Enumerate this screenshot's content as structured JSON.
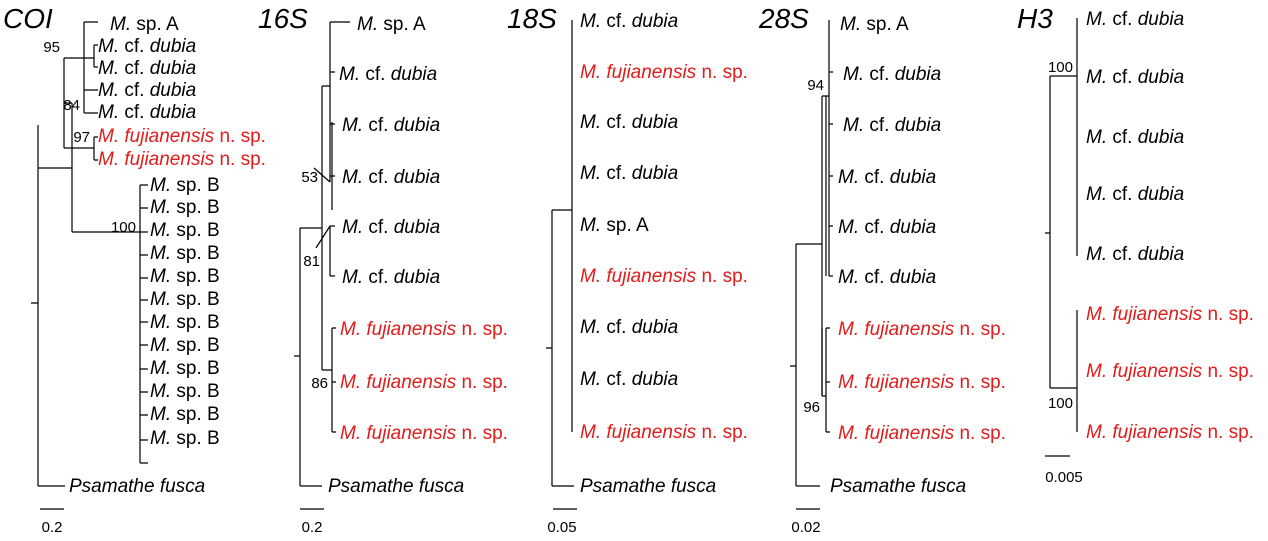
{
  "colors": {
    "black": "#000000",
    "red": "#e21b1b"
  },
  "trees": [
    {
      "gene": "COI",
      "scale": "0.2",
      "leaves": [
        {
          "genus": "M.",
          "rest": " sp. A",
          "style": "spA",
          "color": "black"
        },
        {
          "genus": "M.",
          "rest": " cf. dubia",
          "style": "cf",
          "color": "black"
        },
        {
          "genus": "M.",
          "rest": " cf. dubia",
          "style": "cf",
          "color": "black"
        },
        {
          "genus": "M.",
          "rest": " cf. dubia",
          "style": "cf",
          "color": "black"
        },
        {
          "genus": "M.",
          "rest": " cf. dubia",
          "style": "cf",
          "color": "black"
        },
        {
          "genus": "M.",
          "rest": " fujianensis n. sp.",
          "style": "fuj",
          "color": "red"
        },
        {
          "genus": "M.",
          "rest": " fujianensis n. sp.",
          "style": "fuj",
          "color": "red"
        },
        {
          "genus": "M.",
          "rest": " sp. B",
          "style": "spB",
          "color": "black"
        },
        {
          "genus": "M.",
          "rest": " sp. B",
          "style": "spB",
          "color": "black"
        },
        {
          "genus": "M.",
          "rest": " sp. B",
          "style": "spB",
          "color": "black"
        },
        {
          "genus": "M.",
          "rest": " sp. B",
          "style": "spB",
          "color": "black"
        },
        {
          "genus": "M.",
          "rest": " sp. B",
          "style": "spB",
          "color": "black"
        },
        {
          "genus": "M.",
          "rest": " sp. B",
          "style": "spB",
          "color": "black"
        },
        {
          "genus": "M.",
          "rest": " sp. B",
          "style": "spB",
          "color": "black"
        },
        {
          "genus": "M.",
          "rest": " sp. B",
          "style": "spB",
          "color": "black"
        },
        {
          "genus": "M.",
          "rest": " sp. B",
          "style": "spB",
          "color": "black"
        },
        {
          "genus": "M.",
          "rest": " sp. B",
          "style": "spB",
          "color": "black"
        },
        {
          "genus": "M.",
          "rest": " sp. B",
          "style": "spB",
          "color": "black"
        },
        {
          "genus": "M.",
          "rest": " sp. B",
          "style": "spB",
          "color": "black"
        },
        {
          "genus": "Psamathe fusca",
          "rest": "",
          "style": "out",
          "color": "black"
        }
      ],
      "supports": [
        "95",
        "84",
        "97",
        "100"
      ]
    },
    {
      "gene": "16S",
      "scale": "0.2",
      "leaves": [
        {
          "genus": "M.",
          "rest": " sp. A",
          "style": "spA",
          "color": "black"
        },
        {
          "genus": "M.",
          "rest": " cf. dubia",
          "style": "cf",
          "color": "black"
        },
        {
          "genus": "M.",
          "rest": " cf. dubia",
          "style": "cf",
          "color": "black"
        },
        {
          "genus": "M.",
          "rest": " cf. dubia",
          "style": "cf",
          "color": "black"
        },
        {
          "genus": "M.",
          "rest": " cf. dubia",
          "style": "cf",
          "color": "black"
        },
        {
          "genus": "M.",
          "rest": " cf. dubia",
          "style": "cf",
          "color": "black"
        },
        {
          "genus": "M.",
          "rest": " fujianensis n. sp.",
          "style": "fuj",
          "color": "red"
        },
        {
          "genus": "M.",
          "rest": " fujianensis n. sp.",
          "style": "fuj",
          "color": "red"
        },
        {
          "genus": "M.",
          "rest": " fujianensis n. sp.",
          "style": "fuj",
          "color": "red"
        },
        {
          "genus": "Psamathe fusca",
          "rest": "",
          "style": "out",
          "color": "black"
        }
      ],
      "supports": [
        "53",
        "81",
        "86"
      ]
    },
    {
      "gene": "18S",
      "scale": "0.05",
      "leaves": [
        {
          "genus": "M.",
          "rest": " cf. dubia",
          "style": "cf",
          "color": "black"
        },
        {
          "genus": "M.",
          "rest": " fujianensis n. sp.",
          "style": "fuj",
          "color": "red"
        },
        {
          "genus": "M.",
          "rest": " cf. dubia",
          "style": "cf",
          "color": "black"
        },
        {
          "genus": "M.",
          "rest": " cf. dubia",
          "style": "cf",
          "color": "black"
        },
        {
          "genus": "M.",
          "rest": " sp. A",
          "style": "spA",
          "color": "black"
        },
        {
          "genus": "M.",
          "rest": " fujianensis n. sp.",
          "style": "fuj",
          "color": "red"
        },
        {
          "genus": "M.",
          "rest": " cf. dubia",
          "style": "cf",
          "color": "black"
        },
        {
          "genus": "M.",
          "rest": " cf. dubia",
          "style": "cf",
          "color": "black"
        },
        {
          "genus": "M.",
          "rest": " fujianensis n. sp.",
          "style": "fuj",
          "color": "red"
        },
        {
          "genus": "Psamathe fusca",
          "rest": "",
          "style": "out",
          "color": "black"
        }
      ],
      "supports": []
    },
    {
      "gene": "28S",
      "scale": "0.02",
      "leaves": [
        {
          "genus": "M.",
          "rest": " sp. A",
          "style": "spA",
          "color": "black"
        },
        {
          "genus": "M.",
          "rest": " cf. dubia",
          "style": "cf",
          "color": "black"
        },
        {
          "genus": "M.",
          "rest": " cf. dubia",
          "style": "cf",
          "color": "black"
        },
        {
          "genus": "M.",
          "rest": " cf. dubia",
          "style": "cf",
          "color": "black"
        },
        {
          "genus": "M.",
          "rest": " cf. dubia",
          "style": "cf",
          "color": "black"
        },
        {
          "genus": "M.",
          "rest": " cf. dubia",
          "style": "cf",
          "color": "black"
        },
        {
          "genus": "M.",
          "rest": " fujianensis n. sp.",
          "style": "fuj",
          "color": "red"
        },
        {
          "genus": "M.",
          "rest": " fujianensis n. sp.",
          "style": "fuj",
          "color": "red"
        },
        {
          "genus": "M.",
          "rest": " fujianensis n. sp.",
          "style": "fuj",
          "color": "red"
        },
        {
          "genus": "Psamathe fusca",
          "rest": "",
          "style": "out",
          "color": "black"
        }
      ],
      "supports": [
        "94",
        "96"
      ]
    },
    {
      "gene": "H3",
      "scale": "0.005",
      "leaves": [
        {
          "genus": "M.",
          "rest": " cf. dubia",
          "style": "cf",
          "color": "black"
        },
        {
          "genus": "M.",
          "rest": " cf. dubia",
          "style": "cf",
          "color": "black"
        },
        {
          "genus": "M.",
          "rest": " cf. dubia",
          "style": "cf",
          "color": "black"
        },
        {
          "genus": "M.",
          "rest": " cf. dubia",
          "style": "cf",
          "color": "black"
        },
        {
          "genus": "M.",
          "rest": " cf. dubia",
          "style": "cf",
          "color": "black"
        },
        {
          "genus": "M.",
          "rest": " fujianensis n. sp.",
          "style": "fuj",
          "color": "red"
        },
        {
          "genus": "M.",
          "rest": " fujianensis n. sp.",
          "style": "fuj",
          "color": "red"
        },
        {
          "genus": "M.",
          "rest": " fujianensis n. sp.",
          "style": "fuj",
          "color": "red"
        }
      ],
      "supports": [
        "100",
        "100"
      ]
    }
  ]
}
